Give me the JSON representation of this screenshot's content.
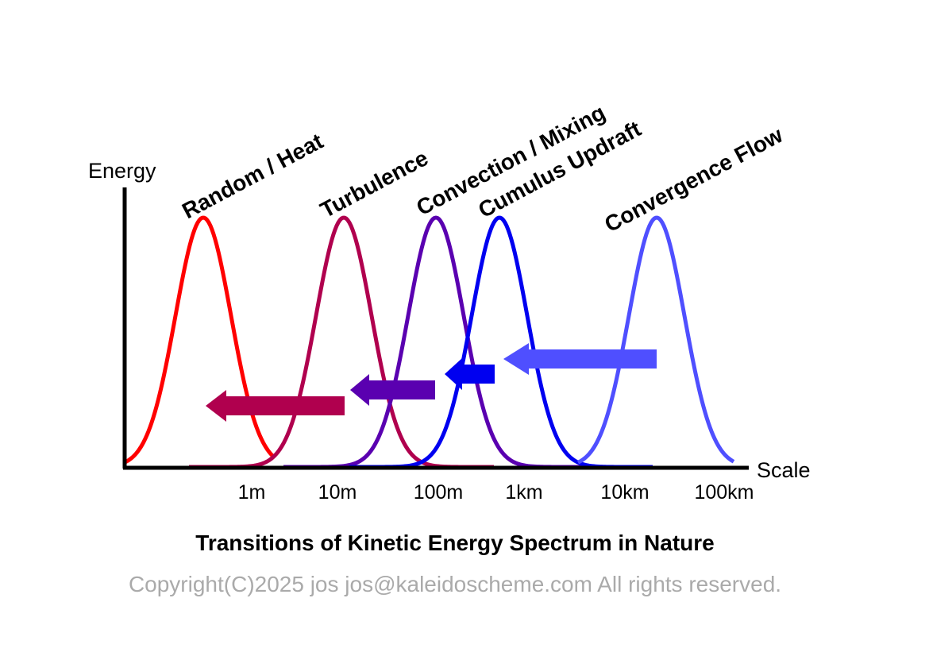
{
  "axes": {
    "y_label": "Energy",
    "x_label": "Scale",
    "x_ticks": [
      "1m",
      "10m",
      "100m",
      "1km",
      "10km",
      "100km"
    ]
  },
  "peaks": [
    {
      "id": "random-heat",
      "label": "Random / Heat",
      "color": "#ff0000"
    },
    {
      "id": "turbulence",
      "label": "Turbulence",
      "color": "#b0004e"
    },
    {
      "id": "convection-mixing",
      "label": "Convection / Mixing",
      "color": "#5a00b0"
    },
    {
      "id": "cumulus-updraft",
      "label": "Cumulus Updraft",
      "color": "#0000f0"
    },
    {
      "id": "convergence-flow",
      "label": "Convergence Flow",
      "color": "#4f4fff"
    }
  ],
  "arrows": [
    {
      "id": "turbulence-to-random",
      "color": "#b0004e"
    },
    {
      "id": "convection-to-turbulence",
      "color": "#5a00b0"
    },
    {
      "id": "updraft-to-convection",
      "color": "#0000f0"
    },
    {
      "id": "convergence-to-updraft",
      "color": "#4f4fff"
    }
  ],
  "caption": {
    "title": "Transitions of Kinetic Energy Spectrum in Nature",
    "copyright": "Copyright(C)2025 jos jos@kaleidoscheme.com All rights reserved."
  }
}
